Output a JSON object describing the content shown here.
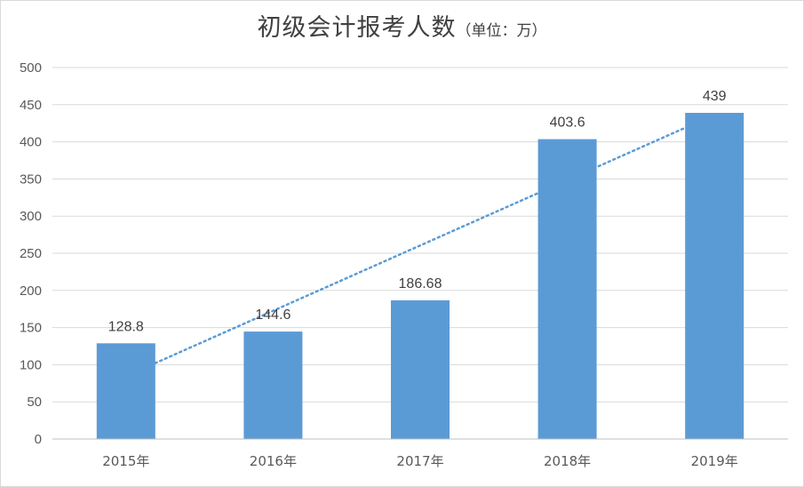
{
  "chart_data": {
    "type": "bar",
    "title": "初级会计报考人数",
    "unit_note": "（单位：万）",
    "categories": [
      "2015年",
      "2016年",
      "2017年",
      "2018年",
      "2019年"
    ],
    "values": [
      128.8,
      144.6,
      186.68,
      403.6,
      439
    ],
    "data_labels": [
      "128.8",
      "144.6",
      "186.68",
      "403.6",
      "439"
    ],
    "ylim": [
      0,
      500
    ],
    "yticks": [
      "0",
      "50",
      "100",
      "150",
      "200",
      "250",
      "300",
      "350",
      "400",
      "450",
      "500"
    ],
    "grid": true,
    "trendline": "linear",
    "colors": {
      "bar": "#5b9bd5",
      "trend": "#5b9bd5",
      "grid": "#d9d9d9",
      "axis": "#bfbfbf"
    }
  }
}
